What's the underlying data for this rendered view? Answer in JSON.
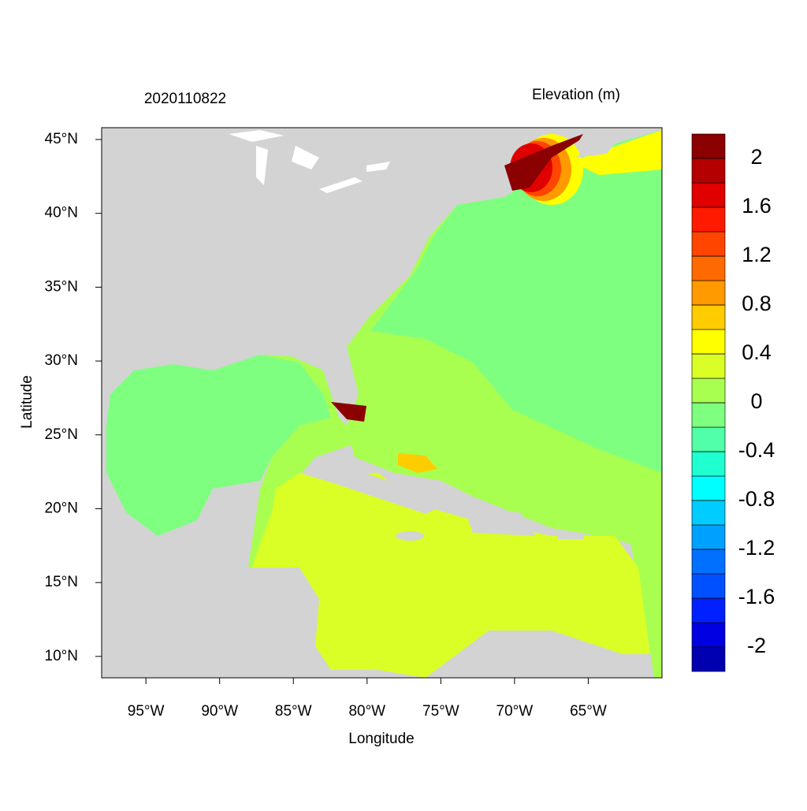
{
  "chart_data": {
    "type": "contour",
    "title": "2020110822",
    "legend_title": "Elevation (m)",
    "x_label": "Longitude",
    "y_label": "Latitude",
    "xlim": [
      -98,
      -60
    ],
    "ylim": [
      8.55,
      45.8
    ],
    "xticks": [
      {
        "value": -95,
        "label": "95°W"
      },
      {
        "value": -90,
        "label": "90°W"
      },
      {
        "value": -85,
        "label": "85°W"
      },
      {
        "value": -80,
        "label": "80°W"
      },
      {
        "value": -75,
        "label": "75°W"
      },
      {
        "value": -70,
        "label": "70°W"
      },
      {
        "value": -65,
        "label": "65°W"
      }
    ],
    "yticks": [
      {
        "value": 10,
        "label": "10°N"
      },
      {
        "value": 15,
        "label": "15°N"
      },
      {
        "value": 20,
        "label": "20°N"
      },
      {
        "value": 25,
        "label": "25°N"
      },
      {
        "value": 30,
        "label": "30°N"
      },
      {
        "value": 35,
        "label": "35°N"
      },
      {
        "value": 40,
        "label": "40°N"
      },
      {
        "value": 45,
        "label": "45°N"
      }
    ],
    "colorbar": {
      "lim": [
        -2.2,
        2.2
      ],
      "ticks": [
        2,
        1.6,
        1.2,
        0.8,
        0.4,
        0,
        -0.4,
        -0.8,
        -1.2,
        -1.6,
        -2
      ],
      "colors": [
        "#0000b0",
        "#0000e0",
        "#0020ff",
        "#0050ff",
        "#0070ff",
        "#00a0ff",
        "#00ccff",
        "#00ffff",
        "#20ffd0",
        "#50ffa8",
        "#7fff80",
        "#a8ff50",
        "#d9ff26",
        "#ffff00",
        "#ffcc00",
        "#ff9a00",
        "#ff6a00",
        "#ff4500",
        "#ff1a00",
        "#e00000",
        "#b40000",
        "#8b0000"
      ]
    }
  }
}
